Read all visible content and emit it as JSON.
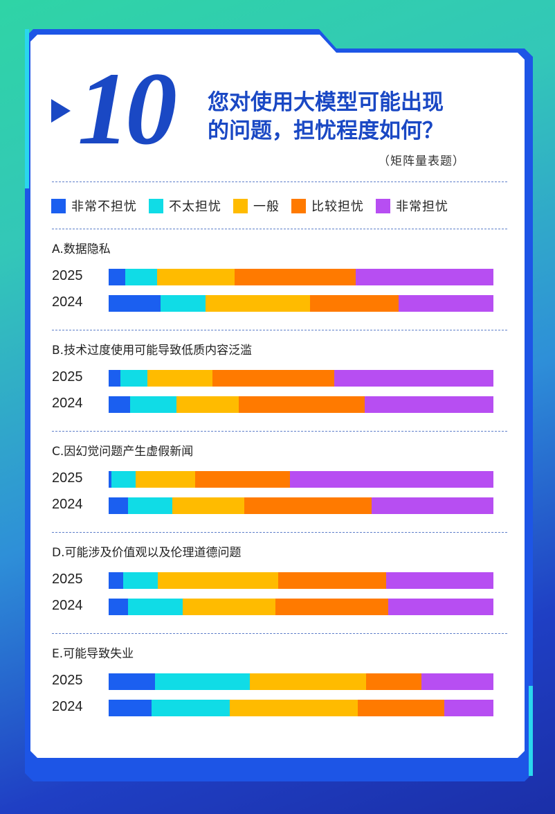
{
  "header": {
    "number": "10",
    "title_line1": "您对使用大模型可能出现",
    "title_line2": "的问题，担忧程度如何？",
    "subtitle": "（矩阵量表题）"
  },
  "chart_data": {
    "type": "bar",
    "orientation": "horizontal-stacked-100",
    "legend": [
      {
        "label": "非常不担忧",
        "color": "#1b5ff0"
      },
      {
        "label": "不太担忧",
        "color": "#10dce6"
      },
      {
        "label": "一般",
        "color": "#ffbb00"
      },
      {
        "label": "比较担忧",
        "color": "#ff7a00"
      },
      {
        "label": "非常担忧",
        "color": "#b74ef2"
      }
    ],
    "questions": [
      {
        "title": "A.数据隐私",
        "rows": [
          {
            "year": "2025",
            "values": [
              4.3,
              8.3,
              20.1,
              31.5,
              35.8
            ]
          },
          {
            "year": "2024",
            "values": [
              13.5,
              11.6,
              27.2,
              23.0,
              24.7
            ]
          }
        ]
      },
      {
        "title": "B.技术过度使用可能导致低质内容泛滥",
        "rows": [
          {
            "year": "2025",
            "values": [
              3.0,
              7.0,
              17.0,
              31.6,
              41.4
            ]
          },
          {
            "year": "2024",
            "values": [
              5.6,
              12.0,
              16.2,
              32.7,
              33.5
            ]
          }
        ]
      },
      {
        "title": "C.因幻觉问题产生虚假新闻",
        "rows": [
          {
            "year": "2025",
            "values": [
              0.7,
              6.3,
              15.4,
              24.8,
              52.8
            ]
          },
          {
            "year": "2024",
            "values": [
              5.0,
              11.5,
              18.7,
              33.1,
              31.7
            ]
          }
        ]
      },
      {
        "title": "D.可能涉及价值观以及伦理道德问题",
        "rows": [
          {
            "year": "2025",
            "values": [
              3.8,
              9.0,
              31.3,
              28.0,
              27.9
            ]
          },
          {
            "year": "2024",
            "values": [
              5.0,
              14.2,
              24.2,
              29.2,
              27.4
            ]
          }
        ]
      },
      {
        "title": "E.可能导致失业",
        "rows": [
          {
            "year": "2025",
            "values": [
              12.0,
              24.7,
              30.2,
              14.4,
              18.7
            ]
          },
          {
            "year": "2024",
            "values": [
              11.1,
              20.3,
              33.3,
              22.5,
              12.8
            ]
          }
        ]
      }
    ]
  }
}
